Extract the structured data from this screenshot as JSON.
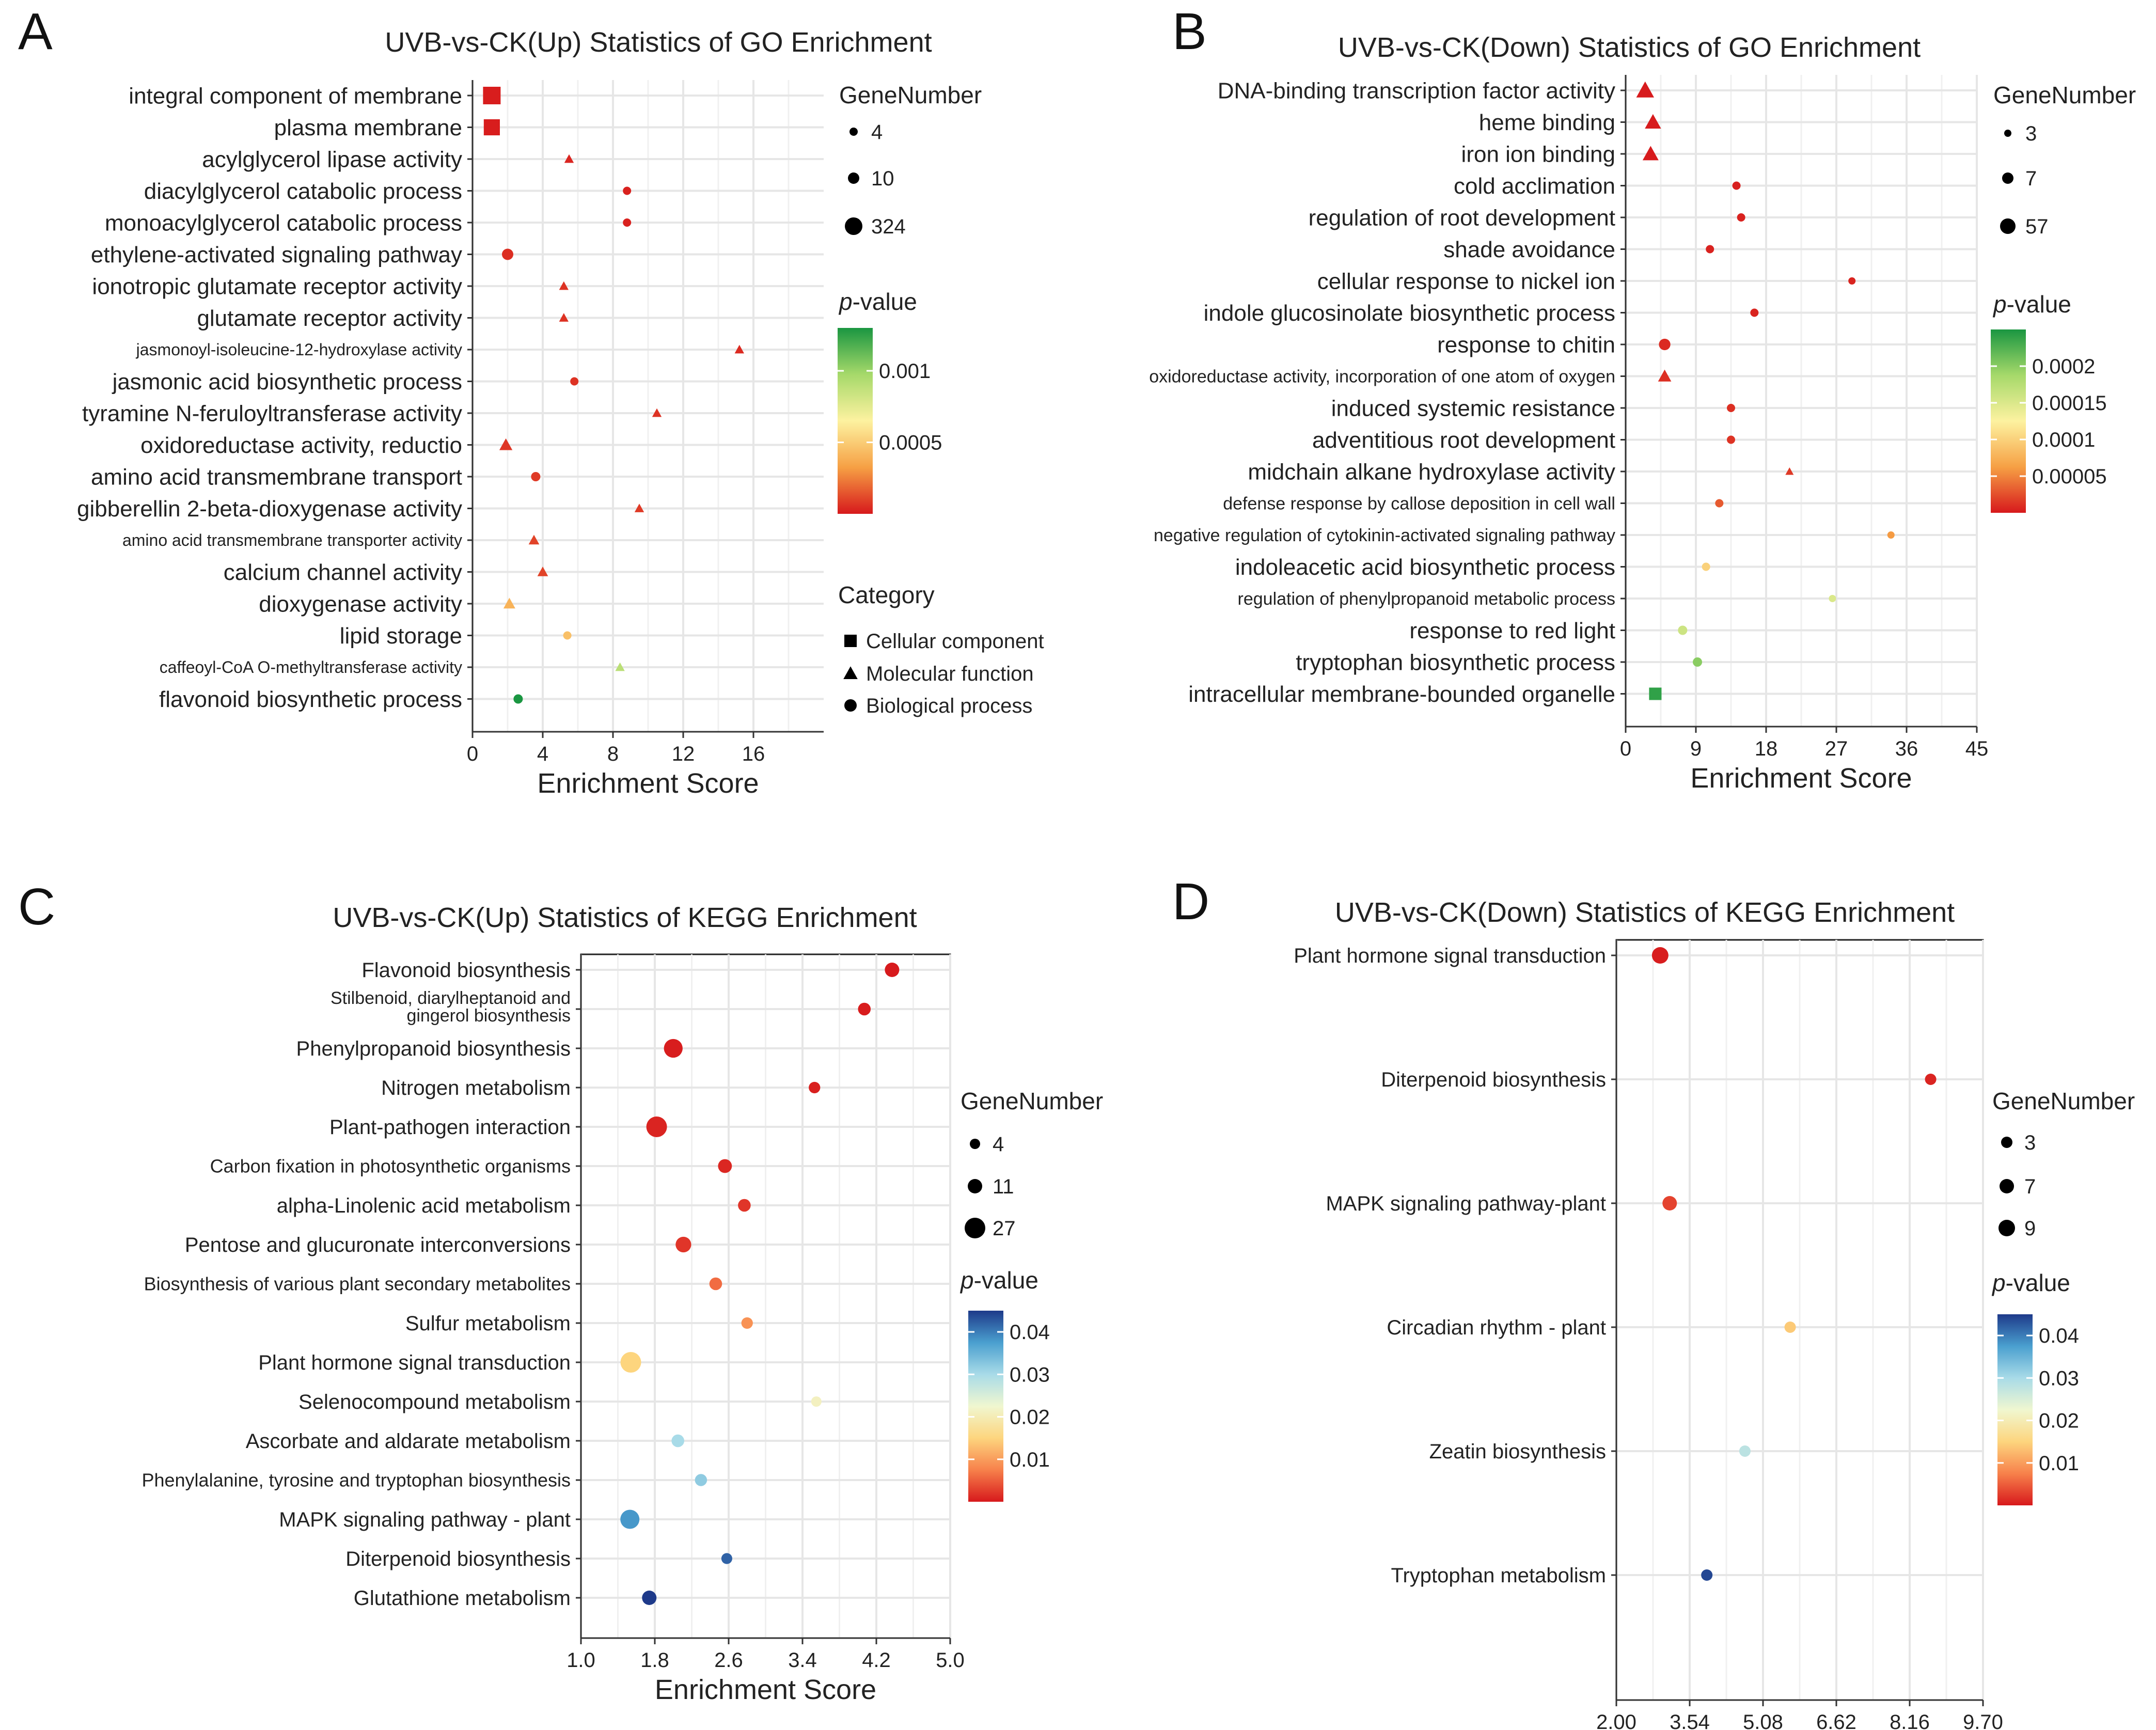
{
  "chart_data": [
    {
      "panel_letter": "A",
      "type": "scatter",
      "title": "UVB-vs-CK(Up) Statistics of GO Enrichment",
      "xlabel": "Enrichment Score",
      "xlim": [
        0,
        20
      ],
      "xticks": [
        0,
        4,
        8,
        12,
        16
      ],
      "xtick_labels": [
        "0",
        "4",
        "8",
        "12",
        "16"
      ],
      "grid": true,
      "legend_position": "right",
      "size_legend": {
        "title": "GeneNumber",
        "values": [
          4,
          10,
          324
        ],
        "labels": [
          "4",
          "10",
          "324"
        ]
      },
      "color_legend": {
        "title_italic": "p",
        "title_rest": "-value",
        "min": 0,
        "max": 0.0013,
        "ticks": [
          0.001,
          0.0005
        ],
        "tick_labels": [
          "0.001",
          "0.0005"
        ],
        "colors": [
          "#d7191c",
          "#f6a044",
          "#fdf2a0",
          "#a6d96a",
          "#1a9641"
        ]
      },
      "shape_legend": {
        "title": "Category",
        "entries": [
          {
            "label": "Cellular component",
            "shape": "square"
          },
          {
            "label": "Molecular function",
            "shape": "triangle"
          },
          {
            "label": "Biological process",
            "shape": "circle"
          }
        ]
      },
      "terms": [
        {
          "label": "integral component of membrane",
          "x": 1.1,
          "pvalue": 1e-05,
          "genes": 324,
          "shape": "square"
        },
        {
          "label": "plasma membrane",
          "x": 1.1,
          "pvalue": 1e-05,
          "genes": 250,
          "shape": "square"
        },
        {
          "label": "acylglycerol lipase activity",
          "x": 5.5,
          "pvalue": 3e-05,
          "genes": 4,
          "shape": "triangle"
        },
        {
          "label": "diacylglycerol catabolic process",
          "x": 8.8,
          "pvalue": 2e-05,
          "genes": 4,
          "shape": "circle"
        },
        {
          "label": "monoacylglycerol catabolic process",
          "x": 8.8,
          "pvalue": 2e-05,
          "genes": 4,
          "shape": "circle"
        },
        {
          "label": "ethylene-activated signaling pathway",
          "x": 2.0,
          "pvalue": 5e-05,
          "genes": 10,
          "shape": "circle"
        },
        {
          "label": "ionotropic glutamate receptor activity",
          "x": 5.2,
          "pvalue": 6e-05,
          "genes": 4,
          "shape": "triangle"
        },
        {
          "label": "glutamate receptor activity",
          "x": 5.2,
          "pvalue": 6e-05,
          "genes": 4,
          "shape": "triangle"
        },
        {
          "label": "jasmonoyl-isoleucine-12-hydroxylase activity",
          "x": 15.2,
          "pvalue": 4e-05,
          "genes": 4,
          "shape": "triangle"
        },
        {
          "label": "jasmonic acid biosynthetic process",
          "x": 5.8,
          "pvalue": 6e-05,
          "genes": 4,
          "shape": "circle"
        },
        {
          "label": "tyramine N-feruloyltransferase activity",
          "x": 10.5,
          "pvalue": 6e-05,
          "genes": 4,
          "shape": "triangle"
        },
        {
          "label": "oxidoreductase activity, reductio",
          "x": 1.9,
          "pvalue": 7e-05,
          "genes": 10,
          "shape": "triangle"
        },
        {
          "label": "amino acid transmembrane transport",
          "x": 3.6,
          "pvalue": 8e-05,
          "genes": 6,
          "shape": "circle"
        },
        {
          "label": "gibberellin 2-beta-dioxygenase activity",
          "x": 9.5,
          "pvalue": 8e-05,
          "genes": 4,
          "shape": "triangle"
        },
        {
          "label": "amino acid transmembrane transporter activity",
          "x": 3.5,
          "pvalue": 0.0001,
          "genes": 6,
          "shape": "triangle"
        },
        {
          "label": "calcium channel activity",
          "x": 4.0,
          "pvalue": 0.0001,
          "genes": 6,
          "shape": "triangle"
        },
        {
          "label": "dioxygenase activity",
          "x": 2.1,
          "pvalue": 0.0004,
          "genes": 8,
          "shape": "triangle"
        },
        {
          "label": "lipid storage",
          "x": 5.4,
          "pvalue": 0.00045,
          "genes": 4,
          "shape": "circle"
        },
        {
          "label": "caffeoyl-CoA O-methyltransferase activity",
          "x": 8.4,
          "pvalue": 0.0009,
          "genes": 4,
          "shape": "triangle"
        },
        {
          "label": "flavonoid biosynthetic process",
          "x": 2.6,
          "pvalue": 0.0013,
          "genes": 6,
          "shape": "circle"
        }
      ]
    },
    {
      "panel_letter": "B",
      "type": "scatter",
      "title": "UVB-vs-CK(Down) Statistics of GO Enrichment",
      "xlabel": "Enrichment Score",
      "xlim": [
        0,
        45
      ],
      "xticks": [
        0,
        9,
        18,
        27,
        36,
        45
      ],
      "xtick_labels": [
        "0",
        "9",
        "18",
        "27",
        "36",
        "45"
      ],
      "grid": true,
      "legend_position": "right",
      "size_legend": {
        "title": "GeneNumber",
        "values": [
          3,
          7,
          57
        ],
        "labels": [
          "3",
          "7",
          "57"
        ]
      },
      "color_legend": {
        "title_italic": "p",
        "title_rest": "-value",
        "min": 0,
        "max": 0.00025,
        "ticks": [
          0.0002,
          0.00015,
          0.0001,
          5e-05
        ],
        "tick_labels": [
          "0.0002",
          "0.00015",
          "0.0001",
          "0.00005"
        ],
        "colors": [
          "#d7191c",
          "#f6a044",
          "#fdf2a0",
          "#a6d96a",
          "#1a9641"
        ]
      },
      "terms": [
        {
          "label": "DNA-binding transcription factor activity",
          "x": 2.5,
          "pvalue": 1e-06,
          "genes": 57,
          "shape": "triangle"
        },
        {
          "label": "heme binding",
          "x": 3.5,
          "pvalue": 1e-06,
          "genes": 40,
          "shape": "triangle"
        },
        {
          "label": "iron ion binding",
          "x": 3.2,
          "pvalue": 1e-06,
          "genes": 38,
          "shape": "triangle"
        },
        {
          "label": "cold acclimation",
          "x": 14.2,
          "pvalue": 3e-06,
          "genes": 4,
          "shape": "circle"
        },
        {
          "label": "regulation of root development",
          "x": 14.8,
          "pvalue": 4e-06,
          "genes": 4,
          "shape": "circle"
        },
        {
          "label": "shade avoidance",
          "x": 10.8,
          "pvalue": 4e-06,
          "genes": 4,
          "shape": "circle"
        },
        {
          "label": "cellular response to nickel ion",
          "x": 29.0,
          "pvalue": 5e-06,
          "genes": 3,
          "shape": "circle"
        },
        {
          "label": "indole glucosinolate biosynthetic process",
          "x": 16.5,
          "pvalue": 5e-06,
          "genes": 4,
          "shape": "circle"
        },
        {
          "label": "response to chitin",
          "x": 5.0,
          "pvalue": 8e-06,
          "genes": 9,
          "shape": "circle"
        },
        {
          "label": "oxidoreductase activity, incorporation of one atom of oxygen",
          "x": 5.0,
          "pvalue": 1e-05,
          "genes": 9,
          "shape": "triangle"
        },
        {
          "label": "induced systemic resistance",
          "x": 13.5,
          "pvalue": 1e-05,
          "genes": 4,
          "shape": "circle"
        },
        {
          "label": "adventitious root development",
          "x": 13.5,
          "pvalue": 1.2e-05,
          "genes": 4,
          "shape": "circle"
        },
        {
          "label": "midchain alkane hydroxylase activity",
          "x": 21.0,
          "pvalue": 1.5e-05,
          "genes": 3,
          "shape": "triangle"
        },
        {
          "label": "defense response by callose deposition in cell wall",
          "x": 12.0,
          "pvalue": 3e-05,
          "genes": 4,
          "shape": "circle"
        },
        {
          "label": "negative regulation of cytokinin-activated signaling pathway",
          "x": 34.0,
          "pvalue": 6e-05,
          "genes": 3,
          "shape": "circle"
        },
        {
          "label": "indoleacetic acid biosynthetic process",
          "x": 10.3,
          "pvalue": 0.0001,
          "genes": 4,
          "shape": "circle"
        },
        {
          "label": "regulation of phenylpropanoid metabolic process",
          "x": 26.5,
          "pvalue": 0.00015,
          "genes": 3,
          "shape": "circle"
        },
        {
          "label": "response to red light",
          "x": 7.3,
          "pvalue": 0.00016,
          "genes": 5,
          "shape": "circle"
        },
        {
          "label": "tryptophan biosynthetic process",
          "x": 9.2,
          "pvalue": 0.0002,
          "genes": 5,
          "shape": "circle"
        },
        {
          "label": "intracellular membrane-bounded organelle",
          "x": 3.8,
          "pvalue": 0.00024,
          "genes": 20,
          "shape": "square"
        }
      ]
    },
    {
      "panel_letter": "C",
      "type": "scatter",
      "title": "UVB-vs-CK(Up) Statistics of KEGG Enrichment",
      "xlabel": "Enrichment Score",
      "xlim": [
        1.0,
        5.0
      ],
      "xticks": [
        1.0,
        1.8,
        2.6,
        3.4,
        4.2,
        5.0
      ],
      "xtick_labels": [
        "1.0",
        "1.8",
        "2.6",
        "3.4",
        "4.2",
        "5.0"
      ],
      "grid": true,
      "legend_position": "right",
      "size_legend": {
        "title": "GeneNumber",
        "values": [
          4,
          11,
          27
        ],
        "labels": [
          "4",
          "11",
          "27"
        ]
      },
      "color_legend": {
        "title_italic": "p",
        "title_rest": "-value",
        "min": 0,
        "max": 0.045,
        "ticks": [
          0.04,
          0.03,
          0.02,
          0.01
        ],
        "tick_labels": [
          "0.04",
          "0.03",
          "0.02",
          "0.01"
        ],
        "colors": [
          "#d7191c",
          "#f7814b",
          "#fdd57e",
          "#f0f7d0",
          "#a8dbe8",
          "#4a9fcf",
          "#1e3a8a"
        ]
      },
      "terms": [
        {
          "label": "Flavonoid biosynthesis",
          "x": 4.37,
          "pvalue": 0.0001,
          "genes": 11
        },
        {
          "label": "Stilbenoid, diarylheptanoid and gingerol biosynthesis",
          "label_lines": [
            "Stilbenoid, diarylheptanoid and",
            "gingerol biosynthesis"
          ],
          "x": 4.07,
          "pvalue": 0.0002,
          "genes": 8
        },
        {
          "label": "Phenylpropanoid biosynthesis",
          "x": 2.0,
          "pvalue": 0.0003,
          "genes": 22
        },
        {
          "label": "Nitrogen metabolism",
          "x": 3.53,
          "pvalue": 0.0005,
          "genes": 6
        },
        {
          "label": "Plant-pathogen interaction",
          "x": 1.82,
          "pvalue": 0.0008,
          "genes": 27
        },
        {
          "label": "Carbon fixation in photosynthetic organisms",
          "x": 2.56,
          "pvalue": 0.001,
          "genes": 10
        },
        {
          "label": "alpha-Linolenic acid metabolism",
          "x": 2.77,
          "pvalue": 0.002,
          "genes": 8
        },
        {
          "label": "Pentose and glucuronate interconversions",
          "x": 2.11,
          "pvalue": 0.002,
          "genes": 14
        },
        {
          "label": "Biosynthesis of various plant secondary metabolites",
          "x": 2.46,
          "pvalue": 0.006,
          "genes": 8
        },
        {
          "label": "Sulfur metabolism",
          "x": 2.8,
          "pvalue": 0.009,
          "genes": 6
        },
        {
          "label": "Plant hormone signal transduction",
          "x": 1.54,
          "pvalue": 0.015,
          "genes": 27
        },
        {
          "label": "Selenocompound metabolism",
          "x": 3.55,
          "pvalue": 0.021,
          "genes": 4
        },
        {
          "label": "Ascorbate and aldarate metabolism",
          "x": 2.05,
          "pvalue": 0.03,
          "genes": 8
        },
        {
          "label": "Phenylalanine, tyrosine and tryptophan biosynthesis",
          "x": 2.3,
          "pvalue": 0.032,
          "genes": 7
        },
        {
          "label": "MAPK signaling pathway - plant",
          "x": 1.53,
          "pvalue": 0.038,
          "genes": 23
        },
        {
          "label": "Diterpenoid biosynthesis",
          "x": 2.58,
          "pvalue": 0.042,
          "genes": 5
        },
        {
          "label": "Glutathione metabolism",
          "x": 1.74,
          "pvalue": 0.045,
          "genes": 11
        }
      ]
    },
    {
      "panel_letter": "D",
      "type": "scatter",
      "title": "UVB-vs-CK(Down) Statistics of KEGG Enrichment",
      "xlabel": "Enrichment Score",
      "xlim": [
        2.0,
        9.7
      ],
      "xticks": [
        2.0,
        3.54,
        5.08,
        6.62,
        8.16,
        9.7
      ],
      "xtick_labels": [
        "2.00",
        "3.54",
        "5.08",
        "6.62",
        "8.16",
        "9.70"
      ],
      "grid": true,
      "legend_position": "right",
      "size_legend": {
        "title": "GeneNumber",
        "values": [
          3,
          7,
          9
        ],
        "labels": [
          "3",
          "7",
          "9"
        ]
      },
      "color_legend": {
        "title_italic": "p",
        "title_rest": "-value",
        "min": 0,
        "max": 0.045,
        "ticks": [
          0.04,
          0.03,
          0.02,
          0.01
        ],
        "tick_labels": [
          "0.04",
          "0.03",
          "0.02",
          "0.01"
        ],
        "colors": [
          "#d7191c",
          "#f7814b",
          "#fdd57e",
          "#f0f7d0",
          "#a8dbe8",
          "#4a9fcf",
          "#1e3a8a"
        ]
      },
      "terms": [
        {
          "label": "Plant hormone signal transduction",
          "x": 2.92,
          "pvalue": 0.0003,
          "genes": 9
        },
        {
          "label": "Diterpenoid biosynthesis",
          "x": 8.6,
          "pvalue": 0.0008,
          "genes": 3
        },
        {
          "label": "MAPK signaling pathway-plant",
          "x": 3.12,
          "pvalue": 0.003,
          "genes": 7
        },
        {
          "label": "Circadian rhythm - plant",
          "x": 5.65,
          "pvalue": 0.014,
          "genes": 3
        },
        {
          "label": "Zeatin biosynthesis",
          "x": 4.7,
          "pvalue": 0.028,
          "genes": 3
        },
        {
          "label": "Tryptophan metabolism",
          "x": 3.9,
          "pvalue": 0.044,
          "genes": 3
        }
      ]
    }
  ]
}
